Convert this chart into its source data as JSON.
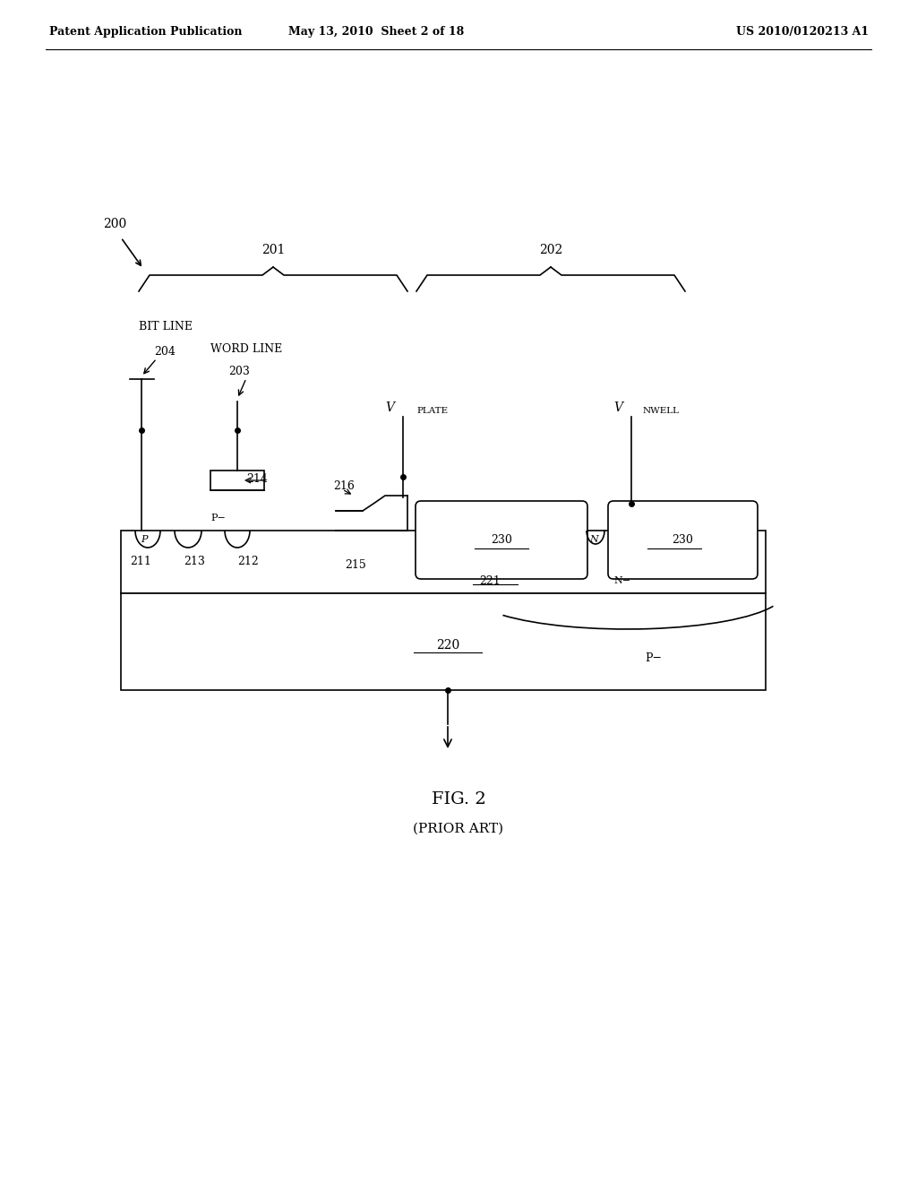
{
  "bg_color": "#ffffff",
  "line_color": "#000000",
  "header_left": "Patent Application Publication",
  "header_mid": "May 13, 2010  Sheet 2 of 18",
  "header_right": "US 2010/0120213 A1",
  "fig_label": "FIG. 2",
  "fig_sublabel": "(PRIOR ART)",
  "ref_200": "200",
  "ref_201": "201",
  "ref_202": "202",
  "ref_203": "203",
  "ref_204": "204",
  "ref_211": "211",
  "ref_212": "212",
  "ref_213": "213",
  "ref_214": "214",
  "ref_215": "215",
  "ref_216": "216",
  "ref_220": "220",
  "ref_221": "221",
  "ref_230a": "230",
  "ref_230b": "230",
  "label_bitline": "BIT LINE",
  "label_wordline": "WORD LINE",
  "label_vplate": "V",
  "label_vplate_sub": "PLATE",
  "label_vnwell": "V",
  "label_vnwell_sub": "NWELL",
  "label_p": "P",
  "label_pminus_left": "P−",
  "label_pminus_right": "P−",
  "label_n": "N",
  "label_nminus": "N−"
}
